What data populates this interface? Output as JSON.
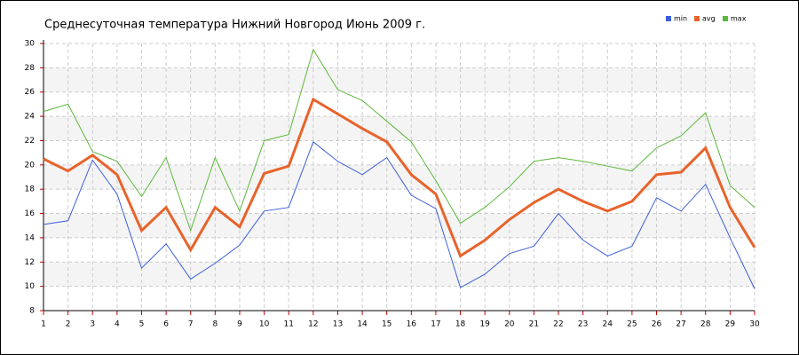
{
  "chart_data": {
    "type": "line",
    "title": "Среднесуточная температура Нижний Новгород  Июнь 2009 г.",
    "x": [
      1,
      2,
      3,
      4,
      5,
      6,
      7,
      8,
      9,
      10,
      11,
      12,
      13,
      14,
      15,
      16,
      17,
      18,
      19,
      20,
      21,
      22,
      23,
      24,
      25,
      26,
      27,
      28,
      29,
      30
    ],
    "series": [
      {
        "name": "min",
        "color": "#3b5fd9",
        "values": [
          15.1,
          15.4,
          20.4,
          17.6,
          11.5,
          13.5,
          10.6,
          11.9,
          13.4,
          16.2,
          16.5,
          21.9,
          20.3,
          19.2,
          20.6,
          17.5,
          16.4,
          9.9,
          11.0,
          12.7,
          13.3,
          16.0,
          13.8,
          12.5,
          13.3,
          17.3,
          16.2,
          18.4,
          14.0,
          9.8
        ]
      },
      {
        "name": "avg",
        "color": "#e8632b",
        "values": [
          20.5,
          19.5,
          20.8,
          19.2,
          14.6,
          16.5,
          13.0,
          16.5,
          14.9,
          19.3,
          19.9,
          25.4,
          24.2,
          23.0,
          21.9,
          19.2,
          17.6,
          12.5,
          13.8,
          15.5,
          16.9,
          18.0,
          17.0,
          16.2,
          17.0,
          19.2,
          19.4,
          21.4,
          16.5,
          13.2
        ]
      },
      {
        "name": "max",
        "color": "#5cb83a",
        "values": [
          24.4,
          25.0,
          21.1,
          20.3,
          17.4,
          20.6,
          14.6,
          20.6,
          16.2,
          22.0,
          22.5,
          29.5,
          26.2,
          25.3,
          23.6,
          21.9,
          18.7,
          15.2,
          16.5,
          18.2,
          20.3,
          20.6,
          20.3,
          19.9,
          19.5,
          21.4,
          22.4,
          24.3,
          18.3,
          16.5
        ]
      }
    ],
    "xlim": [
      1,
      30
    ],
    "xticks": [
      1,
      2,
      3,
      4,
      5,
      6,
      7,
      8,
      9,
      10,
      11,
      12,
      13,
      14,
      15,
      16,
      17,
      18,
      19,
      20,
      21,
      22,
      23,
      24,
      25,
      26,
      27,
      28,
      29,
      30
    ],
    "ylim": [
      8,
      30
    ],
    "yticks": [
      8,
      10,
      12,
      14,
      16,
      18,
      20,
      22,
      24,
      26,
      28,
      30
    ],
    "grid": true,
    "legend": "top-right"
  }
}
